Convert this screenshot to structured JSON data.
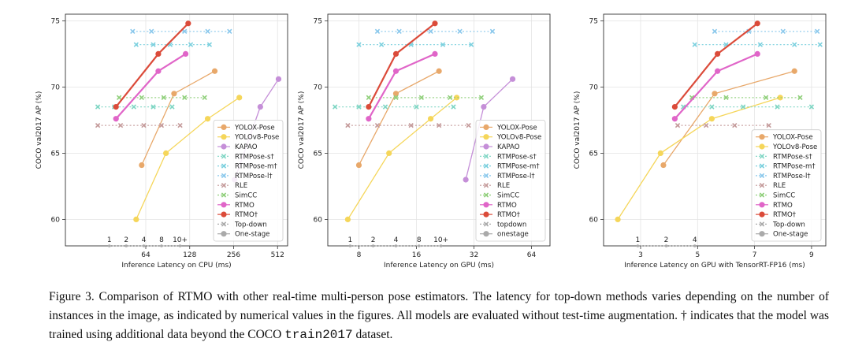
{
  "colors": {
    "yolox": "#e8a86a",
    "yolov8": "#f5d65a",
    "kapao": "#c58fd8",
    "rtmpose_s": "#7fd6c4",
    "rtmpose_m": "#7bd0de",
    "rtmpose_l": "#8ac8ec",
    "rle": "#c49a9a",
    "simcc": "#8fcf7a",
    "rtmo": "#e065c8",
    "rtmo_dagger": "#db4b3a",
    "grid": "#e4e4e4",
    "onestage": "#aaaaaa"
  },
  "chart_data": [
    {
      "type": "line",
      "xscale": "log2",
      "xlabel": "Inference Latency on CPU (ms)",
      "ylabel": "COCO val2017 AP (%)",
      "xlim": [
        18,
        600
      ],
      "ylim": [
        58,
        75.5
      ],
      "xticks": [
        64,
        128,
        256,
        512
      ],
      "xticklabels": [
        "64",
        "128",
        "256",
        "512"
      ],
      "yticks": [
        60,
        65,
        70,
        75
      ],
      "yticklabels": [
        "60",
        "65",
        "70",
        "75"
      ],
      "legend_location": "right",
      "instance_labels": [
        {
          "x": 36,
          "text": "1"
        },
        {
          "x": 47,
          "text": "2"
        },
        {
          "x": 62,
          "text": "4"
        },
        {
          "x": 82,
          "text": "8"
        },
        {
          "x": 110,
          "text": "10+"
        }
      ],
      "series": [
        {
          "name": "YOLOX-Pose",
          "key": "yolox",
          "style": "onestage",
          "marker": "circle",
          "x": [
            60,
            100,
            190
          ],
          "y": [
            64.1,
            69.5,
            71.2
          ]
        },
        {
          "name": "YOLOv8-Pose",
          "key": "yolov8",
          "style": "onestage",
          "marker": "circle",
          "x": [
            55,
            88,
            170,
            280
          ],
          "y": [
            60.0,
            65.0,
            67.6,
            69.2
          ]
        },
        {
          "name": "KAPAO",
          "key": "kapao",
          "style": "onestage",
          "marker": "circle",
          "x": [
            260,
            390,
            520
          ],
          "y": [
            63.0,
            68.5,
            70.6
          ]
        },
        {
          "name": "RTMPose-s†",
          "key": "rtmpose_s",
          "style": "topdown",
          "marker": "x",
          "x": [
            30,
            39,
            53,
            72,
            97
          ],
          "y": [
            68.5,
            68.5,
            68.5,
            68.5,
            68.5
          ]
        },
        {
          "name": "RTMPose-m†",
          "key": "rtmpose_m",
          "style": "topdown",
          "marker": "x",
          "x": [
            55,
            72,
            94,
            130,
            175
          ],
          "y": [
            73.2,
            73.2,
            73.2,
            73.2,
            73.2
          ]
        },
        {
          "name": "RTMPose-l†",
          "key": "rtmpose_l",
          "style": "topdown",
          "marker": "x",
          "x": [
            52,
            70,
            118,
            170,
            240
          ],
          "y": [
            74.2,
            74.2,
            74.2,
            74.2,
            74.2
          ]
        },
        {
          "name": "RLE",
          "key": "rle",
          "style": "topdown",
          "marker": "x",
          "x": [
            30,
            43,
            62,
            82,
            110
          ],
          "y": [
            67.1,
            67.1,
            67.1,
            67.1,
            67.1
          ]
        },
        {
          "name": "SimCC",
          "key": "simcc",
          "style": "topdown",
          "marker": "x",
          "x": [
            42,
            60,
            85,
            118,
            162
          ],
          "y": [
            69.2,
            69.2,
            69.2,
            69.2,
            69.2
          ]
        },
        {
          "name": "RTMO",
          "key": "rtmo",
          "style": "onestage",
          "marker": "circle",
          "x": [
            40,
            78,
            120
          ],
          "y": [
            67.6,
            71.2,
            72.5
          ]
        },
        {
          "name": "RTMO†",
          "key": "rtmo_dagger",
          "style": "onestage",
          "marker": "circle",
          "x": [
            40,
            78,
            125
          ],
          "y": [
            68.5,
            72.5,
            74.8
          ]
        }
      ],
      "legend_extra": [
        {
          "name": "Top-down",
          "style": "topdown"
        },
        {
          "name": "One-stage",
          "style": "onestage"
        }
      ]
    },
    {
      "type": "line",
      "xscale": "log2",
      "xlabel": "Inference Latency on GPU (ms)",
      "ylabel": "COCO val2017 AP (%)",
      "xlim": [
        5.5,
        80
      ],
      "ylim": [
        58,
        75.5
      ],
      "xticks": [
        8,
        16,
        32,
        64
      ],
      "xticklabels": [
        "8",
        "16",
        "32",
        "64"
      ],
      "yticks": [
        60,
        65,
        70,
        75
      ],
      "yticklabels": [
        "60",
        "65",
        "70",
        "75"
      ],
      "legend_location": "right",
      "instance_labels": [
        {
          "x": 7.2,
          "text": "1"
        },
        {
          "x": 9.5,
          "text": "2"
        },
        {
          "x": 12.5,
          "text": "4"
        },
        {
          "x": 16.5,
          "text": "8"
        },
        {
          "x": 21.5,
          "text": "10+"
        }
      ],
      "series": [
        {
          "name": "YOLOX-Pose",
          "key": "yolox",
          "style": "onestage",
          "marker": "circle",
          "x": [
            8,
            12.5,
            21
          ],
          "y": [
            64.1,
            69.5,
            71.2
          ]
        },
        {
          "name": "YOLOv8-Pose",
          "key": "yolov8",
          "style": "onestage",
          "marker": "circle",
          "x": [
            7,
            11.5,
            19,
            26
          ],
          "y": [
            60.0,
            65.0,
            67.6,
            69.2
          ]
        },
        {
          "name": "KAPAO",
          "key": "kapao",
          "style": "onestage",
          "marker": "circle",
          "x": [
            29,
            36,
            51
          ],
          "y": [
            63.0,
            68.5,
            70.6
          ]
        },
        {
          "name": "RTMPose-s†",
          "key": "rtmpose_s",
          "style": "topdown",
          "marker": "x",
          "x": [
            6,
            8,
            11,
            16,
            25
          ],
          "y": [
            68.5,
            68.5,
            68.5,
            68.5,
            68.5
          ]
        },
        {
          "name": "RTMPose-m†",
          "key": "rtmpose_m",
          "style": "topdown",
          "marker": "x",
          "x": [
            8,
            10.5,
            15,
            22,
            31
          ],
          "y": [
            73.2,
            73.2,
            73.2,
            73.2,
            73.2
          ]
        },
        {
          "name": "RTMPose-l†",
          "key": "rtmpose_l",
          "style": "topdown",
          "marker": "x",
          "x": [
            10,
            13,
            19,
            27,
            40
          ],
          "y": [
            74.2,
            74.2,
            74.2,
            74.2,
            74.2
          ]
        },
        {
          "name": "RLE",
          "key": "rle",
          "style": "topdown",
          "marker": "x",
          "x": [
            7,
            10,
            15,
            21,
            30
          ],
          "y": [
            67.1,
            67.1,
            67.1,
            67.1,
            67.1
          ]
        },
        {
          "name": "SimCC",
          "key": "simcc",
          "style": "topdown",
          "marker": "x",
          "x": [
            9,
            12.5,
            17,
            24,
            35
          ],
          "y": [
            69.2,
            69.2,
            69.2,
            69.2,
            69.2
          ]
        },
        {
          "name": "RTMO",
          "key": "rtmo",
          "style": "onestage",
          "marker": "circle",
          "x": [
            9,
            12.5,
            20
          ],
          "y": [
            67.6,
            71.2,
            72.5
          ]
        },
        {
          "name": "RTMO†",
          "key": "rtmo_dagger",
          "style": "onestage",
          "marker": "circle",
          "x": [
            9,
            12.5,
            20
          ],
          "y": [
            68.5,
            72.5,
            74.8
          ]
        }
      ],
      "legend_extra": [
        {
          "name": "topdown",
          "style": "topdown"
        },
        {
          "name": "onestage",
          "style": "onestage"
        }
      ]
    },
    {
      "type": "line",
      "xscale": "linear",
      "xlabel": "Inference Latency on GPU with TensorRT-FP16 (ms)",
      "ylabel": "COCO val2017 AP (%)",
      "xlim": [
        1.7,
        9.5
      ],
      "ylim": [
        58,
        75.5
      ],
      "xticks": [
        3,
        5,
        7,
        9
      ],
      "xticklabels": [
        "3",
        "5",
        "7",
        "9"
      ],
      "yticks": [
        60,
        65,
        70,
        75
      ],
      "yticklabels": [
        "60",
        "65",
        "70",
        "75"
      ],
      "legend_location": "right",
      "instance_labels": [
        {
          "x": 2.9,
          "text": "1"
        },
        {
          "x": 3.9,
          "text": "2"
        },
        {
          "x": 4.9,
          "text": "4"
        }
      ],
      "series": [
        {
          "name": "YOLOX-Pose",
          "key": "yolox",
          "style": "onestage",
          "marker": "circle",
          "x": [
            3.8,
            5.6,
            8.4
          ],
          "y": [
            64.1,
            69.5,
            71.2
          ]
        },
        {
          "name": "YOLOv8-Pose",
          "key": "yolov8",
          "style": "onestage",
          "marker": "circle",
          "x": [
            2.2,
            3.7,
            5.5,
            7.9
          ],
          "y": [
            60.0,
            65.0,
            67.6,
            69.2
          ]
        },
        {
          "name": "RTMPose-s†",
          "key": "rtmpose_s",
          "style": "topdown",
          "marker": "x",
          "x": [
            4.5,
            5.5,
            6.6,
            7.8,
            9.0
          ],
          "y": [
            68.5,
            68.5,
            68.5,
            68.5,
            68.5
          ]
        },
        {
          "name": "RTMPose-m†",
          "key": "rtmpose_m",
          "style": "topdown",
          "marker": "x",
          "x": [
            4.9,
            6.0,
            7.2,
            8.4,
            9.3
          ],
          "y": [
            73.2,
            73.2,
            73.2,
            73.2,
            73.2
          ]
        },
        {
          "name": "RTMPose-l†",
          "key": "rtmpose_l",
          "style": "topdown",
          "marker": "x",
          "x": [
            5.6,
            6.8,
            8.0,
            9.2
          ],
          "y": [
            74.2,
            74.2,
            74.2,
            74.2
          ]
        },
        {
          "name": "RLE",
          "key": "rle",
          "style": "topdown",
          "marker": "x",
          "x": [
            4.3,
            5.3,
            6.3,
            7.5
          ],
          "y": [
            67.1,
            67.1,
            67.1,
            67.1
          ]
        },
        {
          "name": "SimCC",
          "key": "simcc",
          "style": "topdown",
          "marker": "x",
          "x": [
            4.8,
            6.0,
            7.4,
            8.6
          ],
          "y": [
            69.2,
            69.2,
            69.2,
            69.2
          ]
        },
        {
          "name": "RTMO",
          "key": "rtmo",
          "style": "onestage",
          "marker": "circle",
          "x": [
            4.2,
            5.7,
            7.1
          ],
          "y": [
            67.6,
            71.2,
            72.5
          ]
        },
        {
          "name": "RTMO†",
          "key": "rtmo_dagger",
          "style": "onestage",
          "marker": "circle",
          "x": [
            4.2,
            5.7,
            7.1
          ],
          "y": [
            68.5,
            72.5,
            74.8
          ]
        }
      ],
      "legend_extra": [
        {
          "name": "Top-down",
          "style": "topdown"
        },
        {
          "name": "One-stage",
          "style": "onestage"
        }
      ]
    }
  ],
  "caption": {
    "part1": "Figure 3. Comparison of RTMO with other real-time multi-person pose estimators. The latency for top-down methods varies depending on the number of instances in the image, as indicated by numerical values in the figures. All models are evaluated without test-time augmentation. † indicates that the model was trained using additional data beyond the COCO ",
    "code": "train2017",
    "part2": " dataset."
  }
}
